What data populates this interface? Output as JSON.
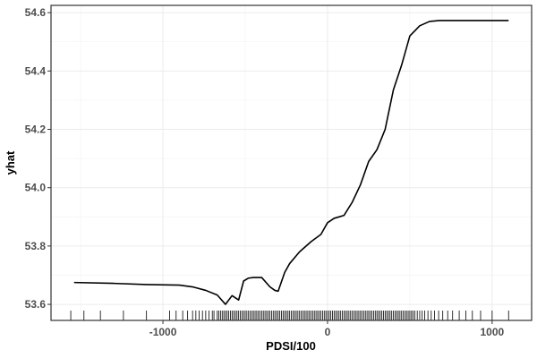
{
  "chart_data": {
    "type": "line",
    "title": "",
    "xlabel": "PDSI/100",
    "ylabel": "yhat",
    "xlim": [
      -1680,
      1240
    ],
    "ylim": [
      53.545,
      54.625
    ],
    "x_ticks": [
      -1000,
      0,
      1000
    ],
    "x_tick_labels": [
      "-1000",
      "0",
      "1000"
    ],
    "y_ticks": [
      53.6,
      53.8,
      54.0,
      54.2,
      54.4,
      54.6
    ],
    "y_tick_labels": [
      "53.6",
      "53.8",
      "54.0",
      "54.2",
      "54.4",
      "54.6"
    ],
    "grid": true,
    "legend": "none",
    "series": [
      {
        "x": [
          -1540,
          -1300,
          -1100,
          -900,
          -820,
          -740,
          -670,
          -620,
          -580,
          -540,
          -510,
          -480,
          -450,
          -400,
          -350,
          -320,
          -300,
          -260,
          -230,
          -170,
          -100,
          -40,
          0,
          40,
          100,
          150,
          200,
          250,
          300,
          350,
          400,
          450,
          500,
          560,
          620,
          680,
          820,
          1100
        ],
        "y": [
          53.675,
          53.672,
          53.668,
          53.666,
          53.66,
          53.648,
          53.632,
          53.6,
          53.63,
          53.615,
          53.68,
          53.69,
          53.692,
          53.692,
          53.66,
          53.648,
          53.645,
          53.71,
          53.74,
          53.78,
          53.815,
          53.84,
          53.88,
          53.895,
          53.905,
          53.95,
          54.01,
          54.09,
          54.13,
          54.2,
          54.335,
          54.42,
          54.52,
          54.555,
          54.57,
          54.573,
          54.573,
          54.573
        ]
      }
    ],
    "rug_x": [
      -1560,
      -1480,
      -1380,
      -1240,
      -1100,
      -960,
      -920,
      -880,
      -850,
      -820,
      -800,
      -780,
      -760,
      -740,
      -720,
      -700,
      -690,
      -670,
      -660,
      -650,
      -640,
      -630,
      -620,
      -610,
      -600,
      -590,
      -580,
      -570,
      -560,
      -550,
      -540,
      -530,
      -520,
      -510,
      -500,
      -490,
      -480,
      -470,
      -460,
      -450,
      -440,
      -430,
      -420,
      -410,
      -400,
      -390,
      -380,
      -370,
      -360,
      -350,
      -340,
      -330,
      -320,
      -310,
      -300,
      -290,
      -280,
      -270,
      -260,
      -250,
      -240,
      -230,
      -220,
      -210,
      -200,
      -190,
      -180,
      -170,
      -160,
      -150,
      -140,
      -130,
      -120,
      -110,
      -100,
      -90,
      -80,
      -70,
      -60,
      -50,
      -40,
      -30,
      -20,
      -10,
      0,
      10,
      20,
      30,
      40,
      50,
      60,
      70,
      80,
      90,
      100,
      110,
      120,
      130,
      140,
      150,
      160,
      170,
      180,
      190,
      200,
      210,
      220,
      230,
      240,
      250,
      260,
      270,
      280,
      290,
      300,
      310,
      320,
      330,
      340,
      350,
      360,
      370,
      380,
      390,
      400,
      410,
      420,
      430,
      440,
      450,
      460,
      470,
      480,
      490,
      500,
      510,
      520,
      530,
      545,
      560,
      575,
      590,
      610,
      630,
      650,
      675,
      700,
      730,
      760,
      800,
      840,
      880,
      930,
      1000,
      1100
    ]
  }
}
